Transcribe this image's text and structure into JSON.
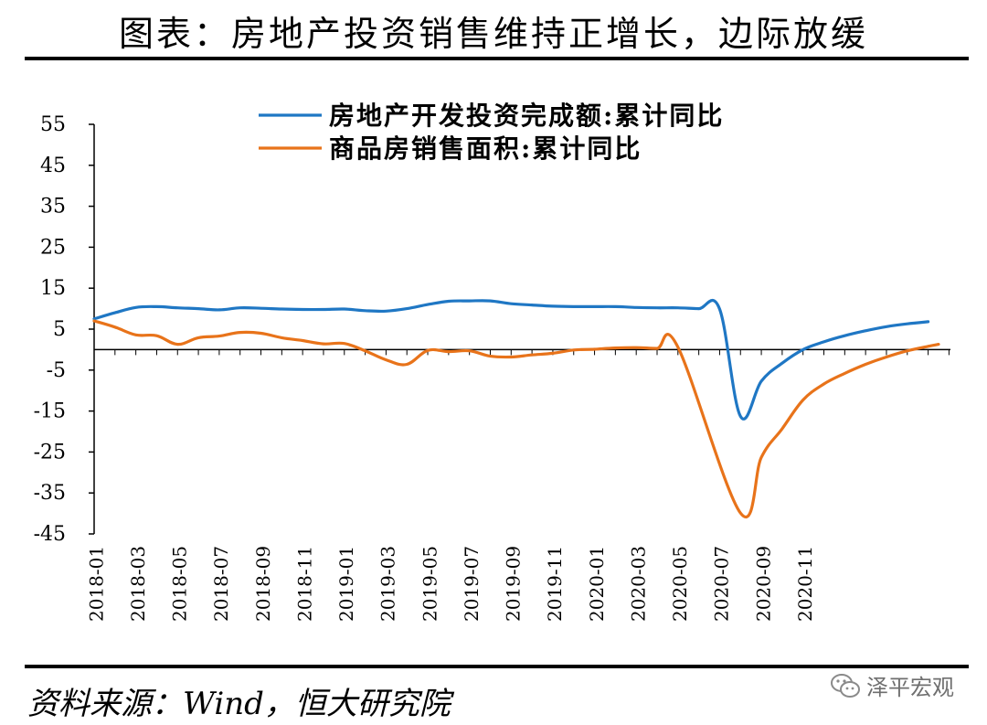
{
  "header": {
    "title": "图表：房地产投资销售维持正增长，边际放缓"
  },
  "footer": {
    "source": "资料来源：Wind，恒大研究院",
    "watermark": "泽平宏观"
  },
  "chart_data": {
    "type": "line",
    "title": "",
    "xlabel": "",
    "ylabel": "",
    "ylim": [
      -45,
      55
    ],
    "yticks": [
      55,
      45,
      35,
      25,
      15,
      5,
      -5,
      -15,
      -25,
      -35,
      -45
    ],
    "xtick_labels": [
      "2018-01",
      "2018-03",
      "2018-05",
      "2018-07",
      "2018-09",
      "2018-11",
      "2019-01",
      "2019-03",
      "2019-05",
      "2019-07",
      "2019-09",
      "2019-11",
      "2020-01",
      "2020-03",
      "2020-05",
      "2020-07",
      "2020-09",
      "2020-11"
    ],
    "legend_position": "top",
    "grid": false,
    "series": [
      {
        "name": "房地产开发投资完成额:累计同比",
        "color": "#1f77c4",
        "values": [
          7.5,
          9.0,
          10.3,
          10.5,
          10.2,
          10.0,
          9.7,
          10.2,
          10.1,
          9.9,
          9.8,
          9.8,
          9.9,
          9.5,
          9.4,
          10.0,
          11.0,
          11.8,
          11.9,
          11.9,
          11.2,
          10.9,
          10.6,
          10.5,
          10.5,
          10.5,
          10.3,
          10.2,
          10.2,
          10.0,
          9.9,
          -16.3,
          -7.7,
          -3.3,
          0.0,
          1.9,
          3.4,
          4.6,
          5.6,
          6.3,
          6.8
        ],
        "x_index": [
          0,
          1,
          2,
          3,
          4,
          5,
          6,
          7,
          8,
          9,
          10,
          11,
          12,
          13,
          14,
          15,
          16,
          17,
          18,
          19,
          20,
          21,
          22,
          23,
          24,
          25,
          26,
          27,
          28,
          29,
          30,
          31,
          32,
          33,
          34,
          35,
          36,
          37,
          38,
          39,
          40
        ]
      },
      {
        "name": "商品房销售面积:累计同比",
        "color": "#e8731a",
        "values": [
          7.0,
          5.5,
          3.6,
          3.4,
          1.3,
          2.9,
          3.3,
          4.2,
          4.0,
          2.9,
          2.2,
          1.4,
          1.5,
          -0.3,
          -2.5,
          -3.6,
          -0.2,
          -0.5,
          -0.3,
          -1.6,
          -1.8,
          -1.3,
          -0.9,
          -0.1,
          0.1,
          0.4,
          0.5,
          0.3,
          0.6,
          -39.9,
          -26.3,
          -19.3,
          -12.3,
          -8.4,
          -5.8,
          -3.6,
          -1.8,
          -0.3,
          0.8,
          1.3
        ],
        "x_index": [
          0,
          1,
          2,
          3,
          4,
          5,
          6,
          7,
          8,
          9,
          10,
          11,
          12,
          13,
          14,
          15,
          16,
          17,
          18,
          19,
          20,
          21,
          22,
          23,
          24,
          25,
          26,
          27,
          28,
          31,
          32,
          33,
          34,
          35,
          36,
          37,
          38,
          39,
          40,
          40.5
        ]
      }
    ]
  }
}
